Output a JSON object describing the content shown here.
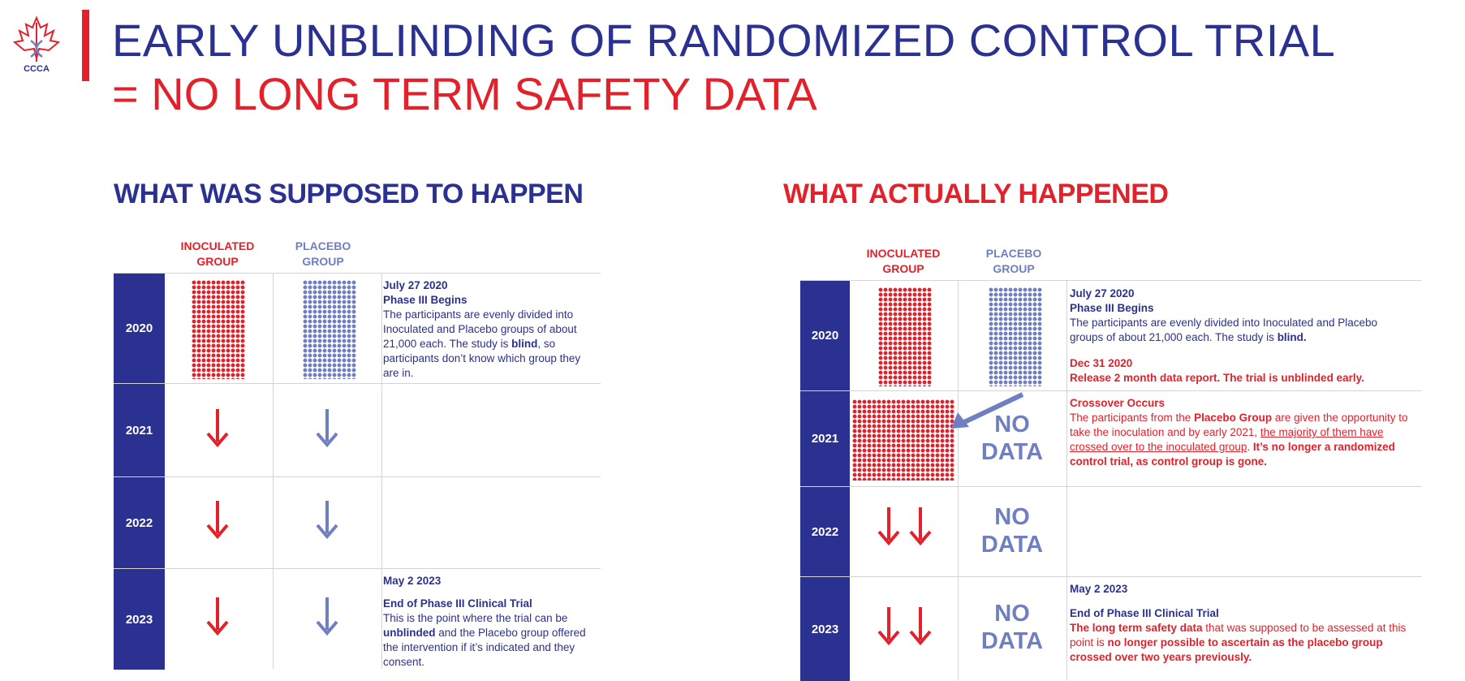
{
  "logo": {
    "text": "CCCA"
  },
  "title": {
    "line1": "EARLY UNBLINDING OF RANDOMIZED CONTROL TRIAL",
    "line2": "= NO LONG TERM SAFETY DATA"
  },
  "left": {
    "heading": "WHAT WAS SUPPOSED TO HAPPEN",
    "inoculated": "INOCULATED GROUP",
    "placebo": "PLACEBO GROUP",
    "years": [
      "2020",
      "2021",
      "2022",
      "2023"
    ],
    "r2020": {
      "date": "July 27 2020",
      "title": "Phase III Begins",
      "t1": "The participants are evenly divided into Inoculated and Placebo groups of about 21,000 each. The study is ",
      "b1": "blind",
      "t2": ", so participants don’t know which group they are in."
    },
    "r2023": {
      "date": "May 2 2023",
      "title": "End of Phase III Clinical Trial",
      "t1": "This is the point where the trial can be ",
      "b1": "unblinded",
      "t2": " and the Placebo group offered the intervention if it’s indicated and they consent."
    }
  },
  "right": {
    "heading": "WHAT ACTUALLY HAPPENED",
    "inoculated": "INOCULATED GROUP",
    "placebo": "PLACEBO GROUP",
    "years": [
      "2020",
      "2021",
      "2022",
      "2023"
    ],
    "no_data": [
      "NO",
      "DATA"
    ],
    "r2020": {
      "date": "July 27 2020",
      "title": "Phase III Begins",
      "t1": "The participants are evenly divided into Inoculated and Placebo groups of about 21,000 each. The study is ",
      "b1": "blind.",
      "date2": "Dec 31 2020",
      "t2": "Release 2 month data report. The trial is unblinded early."
    },
    "r2021": {
      "title": "Crossover Occurs",
      "t1": "The participants from the ",
      "b1": "Placebo Group",
      "t2": " are given the opportunity to take the inoculation and by early 2021, ",
      "u1": "the majority of them have crossed over to the inoculated group",
      "t3": ". ",
      "b2": "It’s no longer a randomized control trial, as control group is gone."
    },
    "r2023": {
      "date": "May 2 2023",
      "title": "End of Phase III Clinical Trial",
      "b1": "The long term safety data",
      "t1": " that was supposed to be assessed at this point is ",
      "b2": "no longer possible to ascertain as the placebo group crossed over two years previously."
    }
  },
  "colors": {
    "red": "#e3212b",
    "navy": "#2b3191",
    "lavender": "#6f7fc1"
  }
}
